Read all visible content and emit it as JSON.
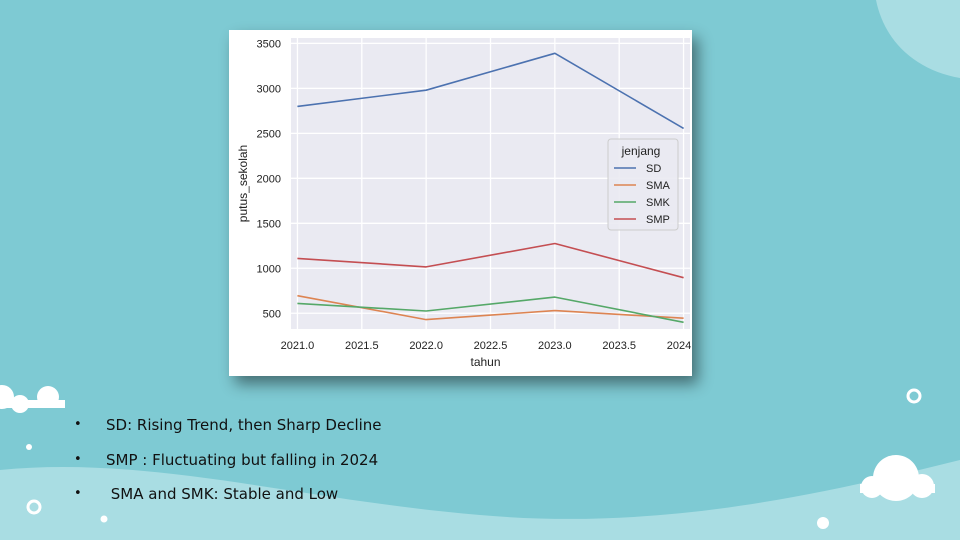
{
  "slide": {
    "background_color": "#7ecad3",
    "bullets": [
      {
        "marker": "•",
        "text": "SD: Rising Trend, then Sharp Decline"
      },
      {
        "marker": "•",
        "text": "SMP : Fluctuating but falling in 2024"
      },
      {
        "marker": "•",
        "text": " SMA and SMK: Stable and Low"
      }
    ]
  },
  "chart_data": {
    "type": "line",
    "title": "",
    "xlabel": "tahun",
    "ylabel": "putus_sekolah",
    "x": [
      2021.0,
      2022.0,
      2023.0,
      2024.0
    ],
    "xticks": [
      "2021.0",
      "2021.5",
      "2022.0",
      "2022.5",
      "2023.0",
      "2023.5",
      "2024.0"
    ],
    "yticks": [
      "500",
      "1000",
      "1500",
      "2000",
      "2500",
      "3000",
      "3500"
    ],
    "xlim": [
      2020.95,
      2024.05
    ],
    "ylim": [
      325,
      3560
    ],
    "grid": true,
    "legend": {
      "title": "jenjang",
      "placement": "right"
    },
    "series": [
      {
        "name": "SD",
        "color": "#4c72b0",
        "values": [
          2800,
          2980,
          3390,
          2555
        ]
      },
      {
        "name": "SMA",
        "color": "#dd8452",
        "values": [
          695,
          430,
          530,
          445
        ]
      },
      {
        "name": "SMK",
        "color": "#55a868",
        "values": [
          610,
          525,
          680,
          400
        ]
      },
      {
        "name": "SMP",
        "color": "#c44e52",
        "values": [
          1110,
          1015,
          1275,
          895
        ]
      }
    ]
  }
}
